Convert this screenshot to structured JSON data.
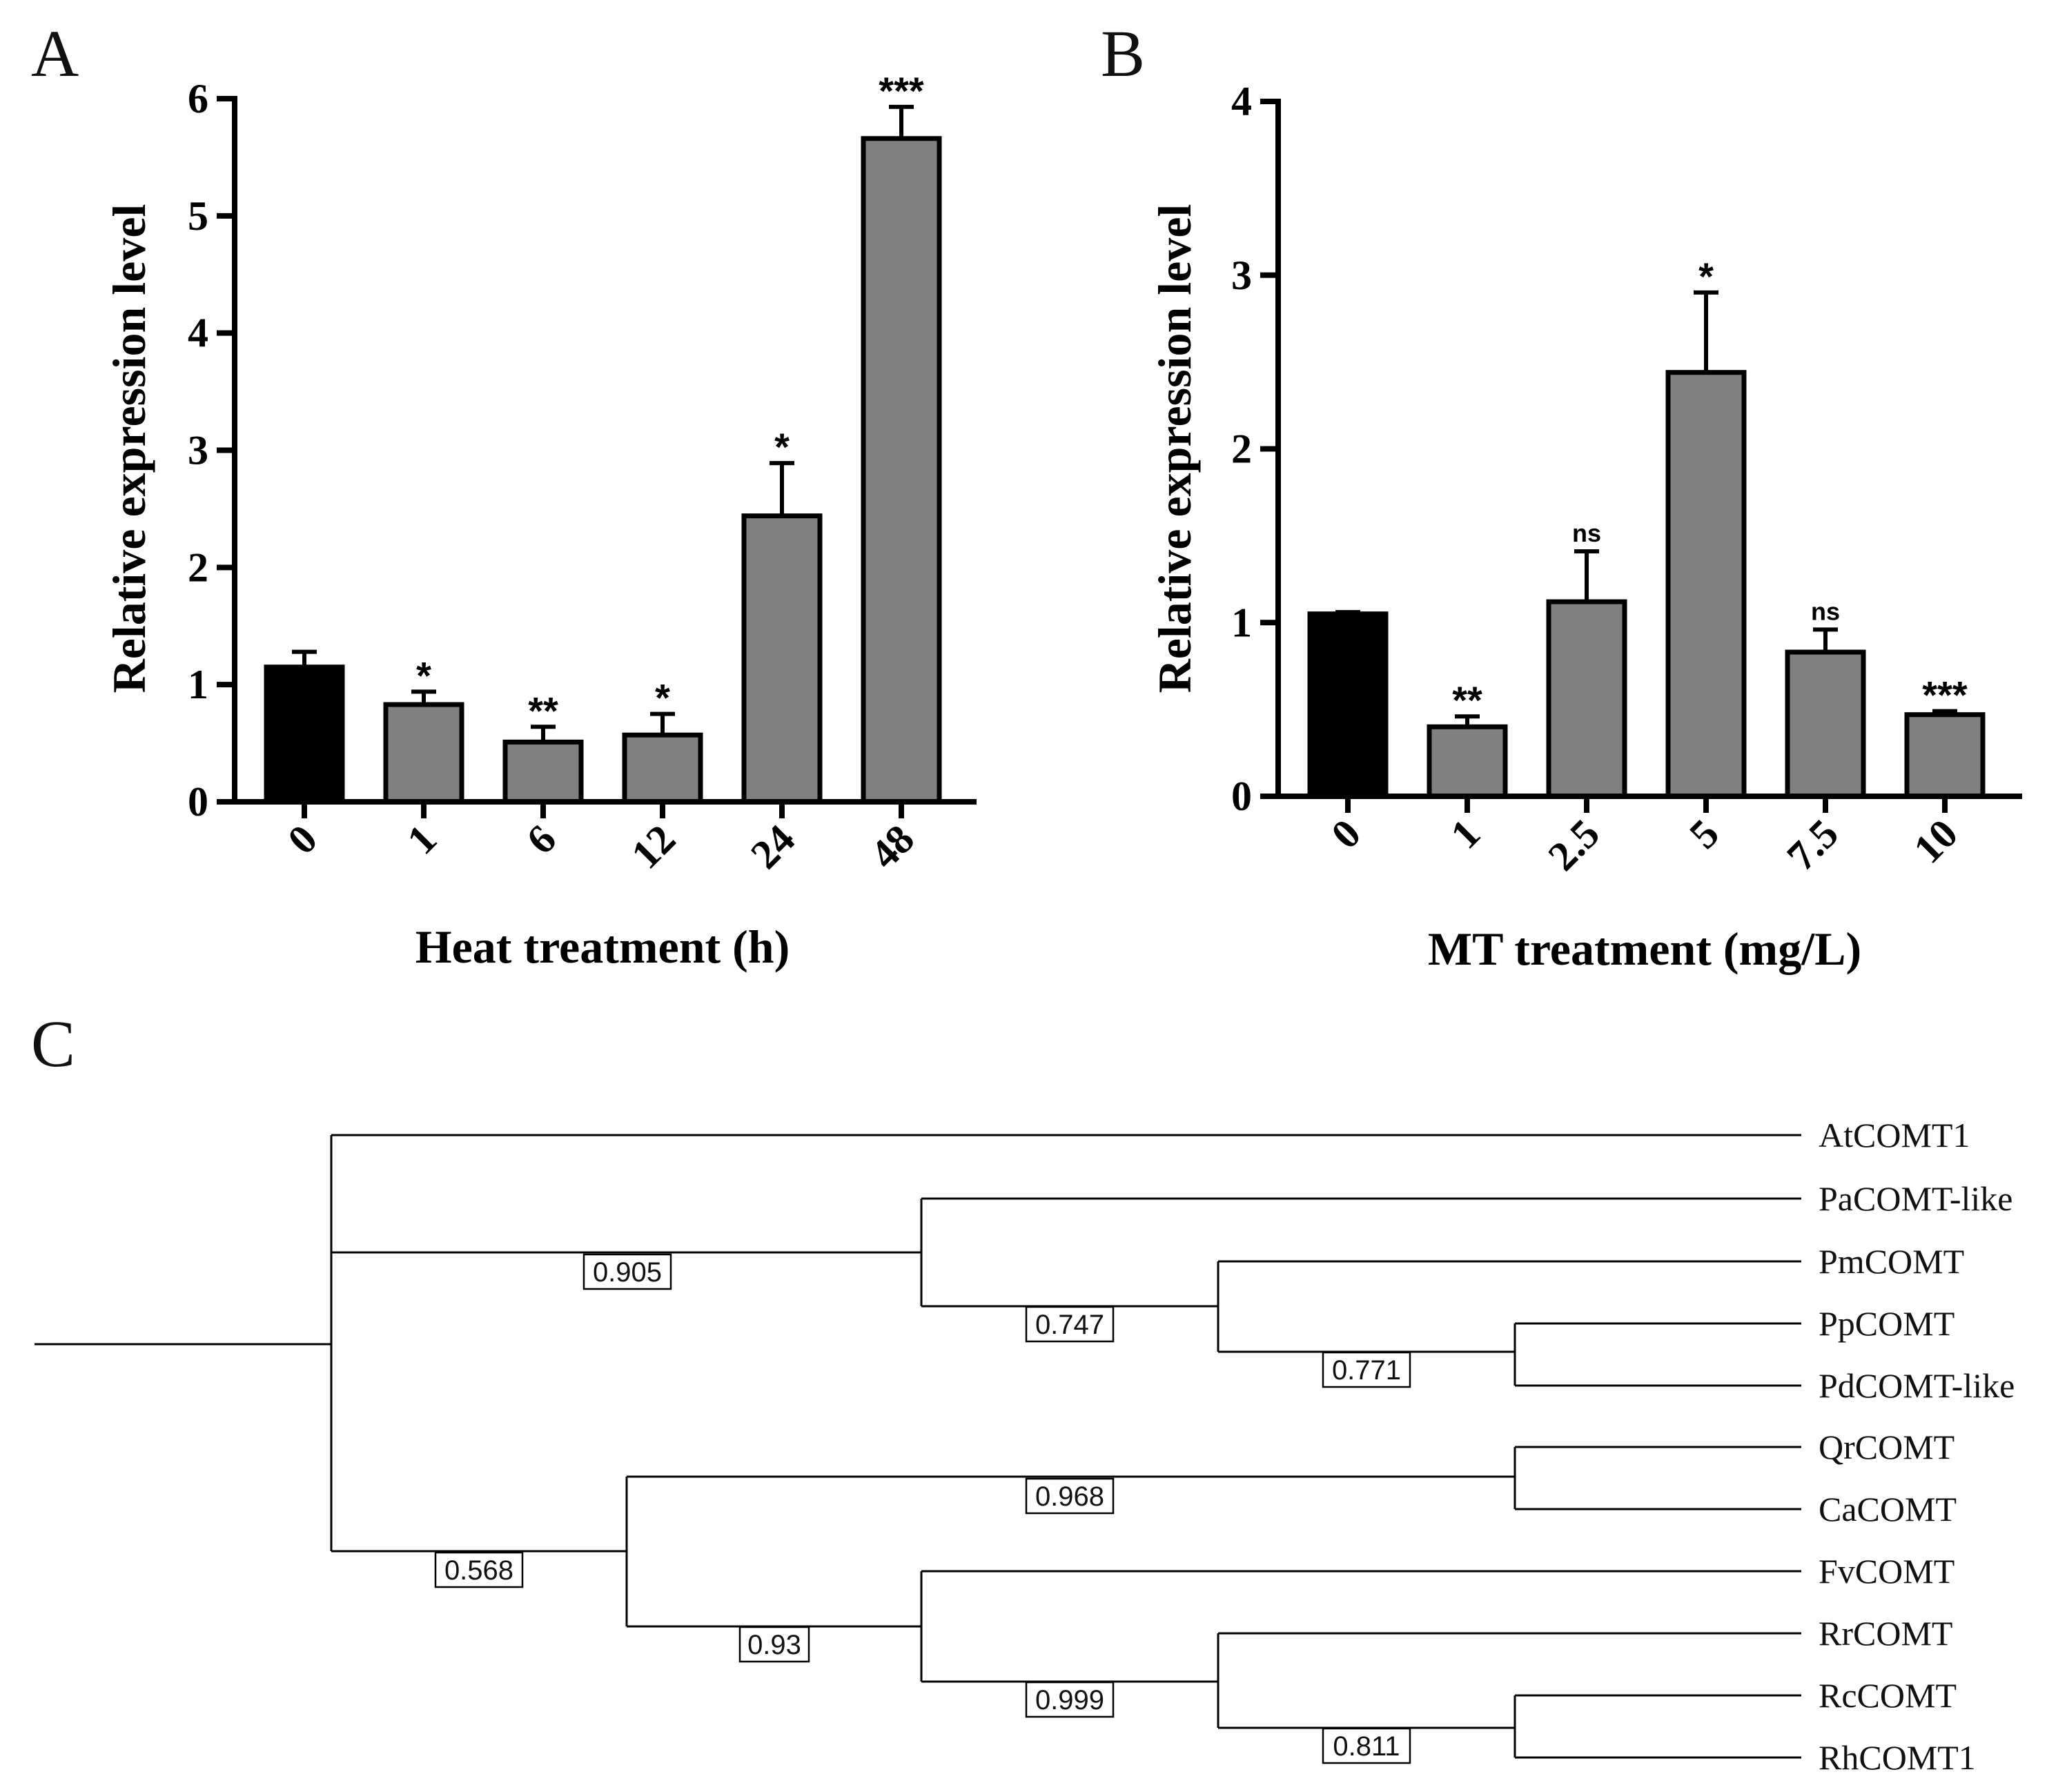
{
  "panels": {
    "a": "A",
    "b": "B",
    "c": "C"
  },
  "chart_data": [
    {
      "type": "bar",
      "panel": "A",
      "title": "",
      "xlabel": "Heat treatment (h)",
      "ylabel": "Relative expression level",
      "ylim": [
        0,
        6
      ],
      "yticks": [
        "0",
        "1",
        "2",
        "3",
        "4",
        "5",
        "6"
      ],
      "categories": [
        "0",
        "1",
        "6",
        "12",
        "24",
        "48"
      ],
      "values": [
        1.15,
        0.83,
        0.51,
        0.57,
        2.44,
        5.66
      ],
      "errors": [
        0.13,
        0.11,
        0.13,
        0.18,
        0.45,
        0.27
      ],
      "significance": [
        "",
        "*",
        "**",
        "*",
        "*",
        "***"
      ],
      "colors": [
        "#000000",
        "#808080",
        "#808080",
        "#808080",
        "#808080",
        "#808080"
      ]
    },
    {
      "type": "bar",
      "panel": "B",
      "title": "",
      "xlabel": "MT treatment (mg/L)",
      "ylabel": "Relative expression level",
      "ylim": [
        0,
        4
      ],
      "yticks": [
        "0",
        "1",
        "2",
        "3",
        "4"
      ],
      "categories": [
        "0",
        "1",
        "2.5",
        "5",
        "7.5",
        "10"
      ],
      "values": [
        1.05,
        0.4,
        1.12,
        2.44,
        0.83,
        0.47
      ],
      "errors": [
        0.01,
        0.06,
        0.29,
        0.46,
        0.13,
        0.02
      ],
      "significance": [
        "",
        "**",
        "ns",
        "*",
        "ns",
        "***"
      ],
      "colors": [
        "#000000",
        "#808080",
        "#808080",
        "#808080",
        "#808080",
        "#808080"
      ]
    }
  ],
  "tree": {
    "panel": "C",
    "leaves": [
      "AtCOMT1",
      "PaCOMT-like",
      "PmCOMT",
      "PpCOMT",
      "PdCOMT-like",
      "QrCOMT",
      "CaCOMT",
      "FvCOMT",
      "RrCOMT",
      "RcCOMT",
      "RhCOMT1"
    ],
    "bootstrap": [
      "0.905",
      "0.747",
      "0.771",
      "0.568",
      "0.968",
      "0.93",
      "0.999",
      "0.811"
    ]
  }
}
